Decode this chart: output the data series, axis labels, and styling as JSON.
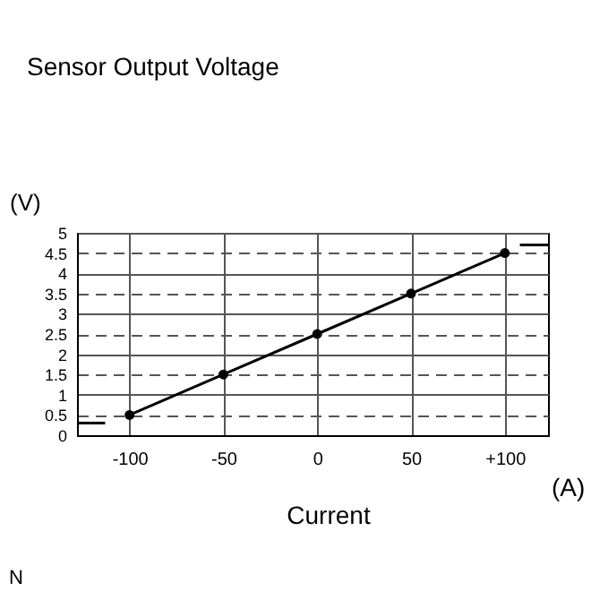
{
  "chart_data": {
    "type": "line",
    "title": "Sensor Output Voltage",
    "xlabel": "Current",
    "ylabel": "(V)",
    "annotations": [
      "(A)",
      "N"
    ],
    "xlim": [
      -128,
      123
    ],
    "xticks": [
      -100,
      -50,
      0,
      50,
      {
        "value": 100,
        "label": "+100"
      }
    ],
    "ylim": [
      0,
      5
    ],
    "yticks": [
      0,
      0.5,
      1,
      1.5,
      2,
      2.5,
      3,
      3.5,
      4,
      4.5,
      5
    ],
    "grid": true,
    "series": [
      {
        "x": [
          -100,
          -50,
          0,
          50,
          100
        ],
        "values": [
          0.5,
          1.5,
          2.5,
          3.5,
          4.5
        ],
        "color": "#000000",
        "marker": "circle"
      },
      {
        "x": [
          -128,
          -113
        ],
        "values": [
          0.3,
          0.3
        ],
        "color": "#000000",
        "marker": "none"
      },
      {
        "x": [
          108,
          123
        ],
        "values": [
          4.7,
          4.7
        ],
        "color": "#000000",
        "marker": "none"
      }
    ]
  }
}
